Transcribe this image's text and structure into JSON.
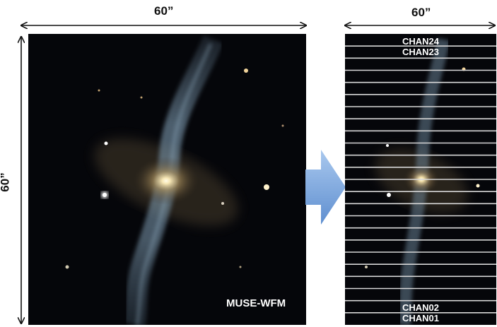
{
  "left_panel": {
    "width_label": "60”",
    "height_label": "60”",
    "instrument_label": "MUSE-WFM"
  },
  "right_panel": {
    "width_label": "60”",
    "channel_top_1": "CHAN24",
    "channel_top_2": "CHAN23",
    "channel_bottom_1": "CHAN02",
    "channel_bottom_2": "CHAN01",
    "slice_count": 24
  },
  "colors": {
    "arrow": "#6f9fd8",
    "slice_line": "#d8d8d8",
    "sky": "#05060a"
  }
}
